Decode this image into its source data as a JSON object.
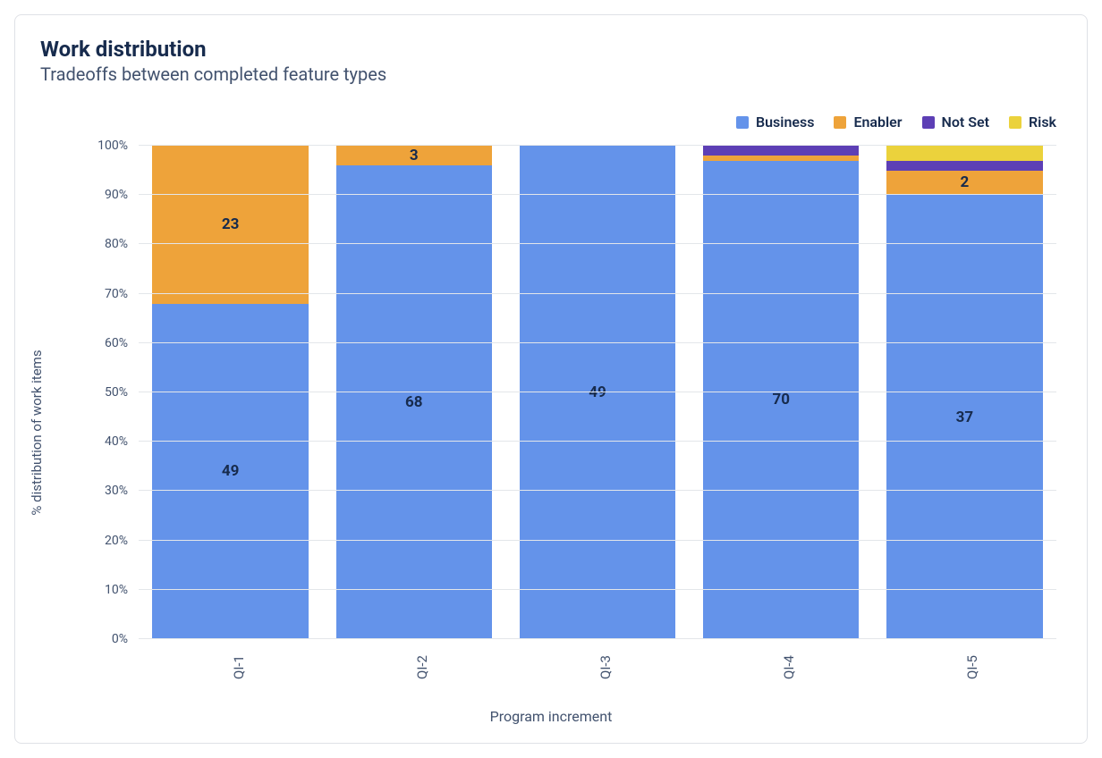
{
  "title": "Work distribution",
  "subtitle": "Tradeoffs between completed feature types",
  "chart": {
    "type": "stacked-bar-100pct",
    "xlabel": "Program increment",
    "ylabel": "% distribution of work items",
    "background_color": "#ffffff",
    "grid_color": "#e3e6ea",
    "border_color": "#dfe1e6",
    "text_color": "#172b4d",
    "axis_text_color": "#42526e",
    "ylim": [
      0,
      100
    ],
    "ytick_step": 10,
    "ytick_suffix": "%",
    "bar_width_pct": 85,
    "title_fontsize": 24,
    "subtitle_fontsize": 20,
    "axis_label_fontsize": 15,
    "tick_fontsize": 14,
    "value_label_fontsize": 17,
    "legend_fontsize": 16,
    "legend": [
      {
        "key": "business",
        "label": "Business",
        "color": "#6493ea"
      },
      {
        "key": "enabler",
        "label": "Enabler",
        "color": "#eea33a"
      },
      {
        "key": "not_set",
        "label": "Not Set",
        "color": "#5d3fb5"
      },
      {
        "key": "risk",
        "label": "Risk",
        "color": "#ebd23c"
      }
    ],
    "categories": [
      "QI-1",
      "QI-2",
      "QI-3",
      "QI-4",
      "QI-5"
    ],
    "series": {
      "business": {
        "percent": [
          68,
          96,
          100,
          97,
          90
        ],
        "count_label": [
          49,
          68,
          49,
          70,
          37
        ]
      },
      "enabler": {
        "percent": [
          32,
          4,
          0,
          1,
          5
        ],
        "count_label": [
          23,
          3,
          null,
          null,
          2
        ]
      },
      "not_set": {
        "percent": [
          0,
          0,
          0,
          2,
          2
        ],
        "count_label": [
          null,
          null,
          null,
          null,
          null
        ]
      },
      "risk": {
        "percent": [
          0,
          0,
          0,
          0,
          3
        ],
        "count_label": [
          null,
          null,
          null,
          null,
          null
        ]
      }
    },
    "stack_order": [
      "business",
      "enabler",
      "not_set",
      "risk"
    ]
  }
}
